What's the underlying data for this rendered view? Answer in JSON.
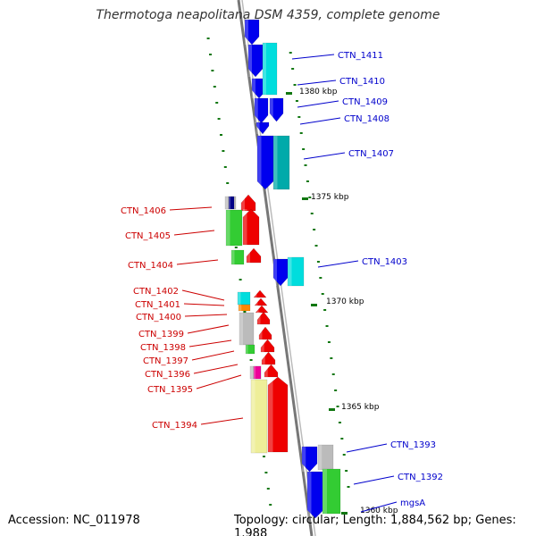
{
  "title": "Thermotoga neapolitana DSM 4359, complete genome",
  "footer": {
    "accession": "Accession: NC_011978",
    "topology": "Topology: circular; Length: 1,884,562 bp; Genes: 1,988"
  },
  "colors": {
    "forward_label": "#0000cc",
    "reverse_label": "#cc0000",
    "backbone": "#888888",
    "ticks": "#117711",
    "gene_blue": "#0000ee",
    "gene_cyan": "#00dddd",
    "gene_teal": "#00aaaa",
    "gene_red": "#ee0000",
    "gene_green": "#33cc33",
    "gene_grey": "#bbbbbb",
    "gene_yellow": "#eeee99",
    "gene_orange": "#ff8800",
    "gene_magenta": "#ee0099",
    "gene_navy": "#000088"
  },
  "kbp_labels": [
    "1380 kbp",
    "1375 kbp",
    "1370 kbp",
    "1365 kbp",
    "1360 kbp"
  ],
  "forward_genes": [
    "CTN_1411",
    "CTN_1410",
    "CTN_1409",
    "CTN_1408",
    "CTN_1407",
    "CTN_1403",
    "CTN_1393",
    "CTN_1392",
    "mgsA"
  ],
  "reverse_genes": [
    "CTN_1406",
    "CTN_1405",
    "CTN_1404",
    "CTN_1402",
    "CTN_1401",
    "CTN_1400",
    "CTN_1399",
    "CTN_1398",
    "CTN_1397",
    "CTN_1396",
    "CTN_1395",
    "CTN_1394"
  ]
}
